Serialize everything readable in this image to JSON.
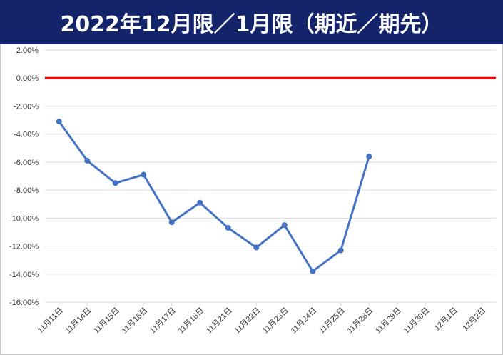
{
  "title": "2022年12月限／1月限（期近／期先）",
  "chart_data": {
    "type": "line",
    "title": "2022年12月限／1月限（期近／期先）",
    "xlabel": "",
    "ylabel": "",
    "categories": [
      "11月11日",
      "11月14日",
      "11月15日",
      "11月16日",
      "11月17日",
      "11月18日",
      "11月21日",
      "11月22日",
      "11月23日",
      "11月24日",
      "11月25日",
      "11月28日",
      "11月29日",
      "11月30日",
      "12月1日",
      "12月2日"
    ],
    "series": [
      {
        "values": [
          -3.1,
          -5.9,
          -7.5,
          -6.9,
          -10.3,
          -8.9,
          -10.7,
          -12.1,
          -10.5,
          -13.8,
          -12.3,
          -5.6,
          null,
          null,
          null,
          null
        ],
        "color": "#4472c4"
      }
    ],
    "reference_line": {
      "value": 0,
      "color": "#ff0000"
    },
    "ylim": [
      -16,
      2
    ],
    "yticks": [
      2,
      0,
      -2,
      -4,
      -6,
      -8,
      -10,
      -12,
      -14,
      -16
    ],
    "ytick_labels": [
      "2.00%",
      "0.00%",
      "-2.00%",
      "-4.00%",
      "-6.00%",
      "-8.00%",
      "-10.00%",
      "-12.00%",
      "-14.00%",
      "-16.00%"
    ],
    "grid": true,
    "legend": "none"
  }
}
